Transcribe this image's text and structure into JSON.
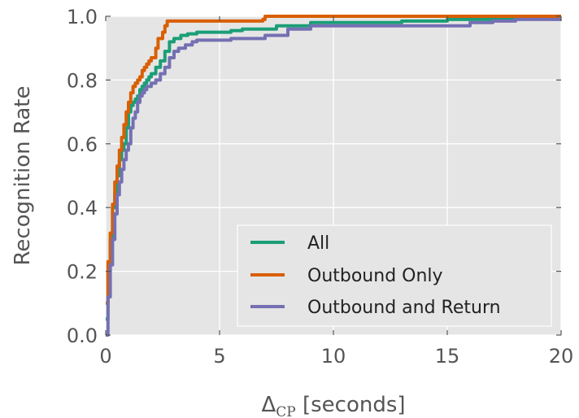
{
  "chart_data": {
    "type": "line",
    "title": "",
    "xlabel": {
      "main": "Δ",
      "sub": "CP",
      "rest": " [seconds]"
    },
    "ylabel": "Recognition Rate",
    "xlim": [
      0,
      20
    ],
    "ylim": [
      0,
      1.0
    ],
    "xticks": [
      0,
      5,
      10,
      15,
      20
    ],
    "xtick_labels": [
      "0",
      "5",
      "10",
      "15",
      "20"
    ],
    "yticks": [
      0.0,
      0.2,
      0.4,
      0.6,
      0.8,
      1.0
    ],
    "ytick_labels": [
      "0.0",
      "0.2",
      "0.4",
      "0.6",
      "0.8",
      "1.0"
    ],
    "grid": true,
    "legend_position": "lower-right",
    "series": [
      {
        "name": "All",
        "color": "#1b9e77",
        "x": [
          0,
          0.1,
          0.2,
          0.3,
          0.4,
          0.5,
          0.6,
          0.7,
          0.8,
          0.9,
          1.0,
          1.1,
          1.2,
          1.3,
          1.4,
          1.5,
          1.6,
          1.7,
          1.8,
          1.9,
          2.0,
          2.2,
          2.4,
          2.6,
          2.8,
          3.0,
          3.3,
          3.6,
          4.0,
          5.5,
          6.0,
          7.0,
          7.5,
          9.0,
          13.0,
          15.0,
          16.0,
          17.5,
          18.0,
          20.0
        ],
        "y": [
          0.05,
          0.2,
          0.3,
          0.4,
          0.45,
          0.5,
          0.55,
          0.58,
          0.6,
          0.65,
          0.7,
          0.72,
          0.73,
          0.74,
          0.75,
          0.77,
          0.78,
          0.79,
          0.8,
          0.81,
          0.82,
          0.84,
          0.86,
          0.89,
          0.92,
          0.93,
          0.94,
          0.945,
          0.95,
          0.955,
          0.96,
          0.96,
          0.97,
          0.98,
          0.985,
          0.99,
          0.99,
          0.99,
          1.0,
          1.0
        ]
      },
      {
        "name": "Outbound Only",
        "color": "#d95f02",
        "x": [
          0,
          0.1,
          0.2,
          0.3,
          0.4,
          0.5,
          0.6,
          0.7,
          0.8,
          0.9,
          1.0,
          1.1,
          1.2,
          1.3,
          1.4,
          1.5,
          1.6,
          1.7,
          1.8,
          1.9,
          2.0,
          2.2,
          2.3,
          2.5,
          2.6,
          2.7,
          6.9,
          7.0,
          20.0
        ],
        "y": [
          0.1,
          0.23,
          0.32,
          0.41,
          0.48,
          0.53,
          0.58,
          0.62,
          0.66,
          0.7,
          0.73,
          0.76,
          0.78,
          0.79,
          0.8,
          0.81,
          0.83,
          0.84,
          0.85,
          0.86,
          0.87,
          0.9,
          0.93,
          0.95,
          0.97,
          0.985,
          0.99,
          1.0,
          1.0
        ]
      },
      {
        "name": "Outbound and Return",
        "color": "#7570b3",
        "x": [
          0,
          0.1,
          0.2,
          0.3,
          0.4,
          0.5,
          0.6,
          0.7,
          0.8,
          0.9,
          1.0,
          1.1,
          1.2,
          1.3,
          1.4,
          1.5,
          1.6,
          1.7,
          1.8,
          2.0,
          2.2,
          2.4,
          2.6,
          2.8,
          3.0,
          3.2,
          3.5,
          3.8,
          4.0,
          5.5,
          7.0,
          8.0,
          9.0,
          16.0,
          17.0,
          18.0,
          20.0
        ],
        "y": [
          0.0,
          0.12,
          0.22,
          0.3,
          0.38,
          0.44,
          0.48,
          0.52,
          0.55,
          0.58,
          0.6,
          0.65,
          0.68,
          0.7,
          0.73,
          0.75,
          0.76,
          0.77,
          0.78,
          0.79,
          0.8,
          0.82,
          0.84,
          0.87,
          0.89,
          0.9,
          0.91,
          0.92,
          0.925,
          0.93,
          0.94,
          0.96,
          0.97,
          0.98,
          0.985,
          0.99,
          0.99
        ]
      }
    ]
  }
}
